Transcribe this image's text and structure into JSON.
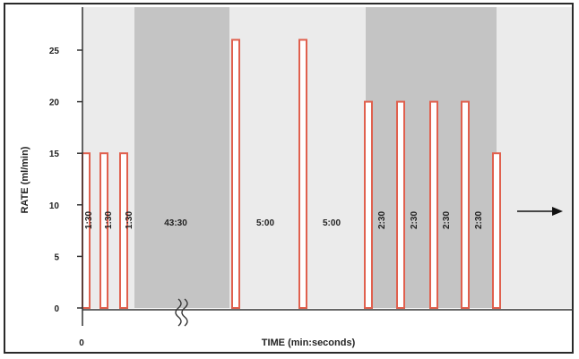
{
  "chart_data": {
    "type": "bar",
    "title": "",
    "xlabel": "TIME (min:seconds)",
    "ylabel": "RATE (ml/min)",
    "ylim": [
      0,
      28
    ],
    "yticks": [
      0,
      5,
      10,
      15,
      20,
      25
    ],
    "x_origin_label": "0",
    "grid": false,
    "colors": {
      "bar_edge": "#e0604e",
      "bar_fill": "#ffffff",
      "panel_light": "#ebebeb",
      "panel_dark": "#c4c4c4",
      "axis": "#333333"
    },
    "bars": [
      {
        "value": 15
      },
      {
        "value": 15
      },
      {
        "value": 15
      },
      {
        "value": 26
      },
      {
        "value": 26
      },
      {
        "value": 20
      },
      {
        "value": 20
      },
      {
        "value": 20
      },
      {
        "value": 20
      },
      {
        "value": 15
      }
    ],
    "intervals": [
      {
        "label": "1:30",
        "orientation": "vertical"
      },
      {
        "label": "1:30",
        "orientation": "vertical"
      },
      {
        "label": "1:30",
        "orientation": "vertical"
      },
      {
        "label": "43:30",
        "orientation": "horizontal"
      },
      {
        "label": "5:00",
        "orientation": "horizontal"
      },
      {
        "label": "5:00",
        "orientation": "horizontal"
      },
      {
        "label": "2:30",
        "orientation": "vertical"
      },
      {
        "label": "2:30",
        "orientation": "vertical"
      },
      {
        "label": "2:30",
        "orientation": "vertical"
      },
      {
        "label": "2:30",
        "orientation": "vertical"
      }
    ],
    "axis_break": true,
    "continuation_arrow": "right"
  }
}
